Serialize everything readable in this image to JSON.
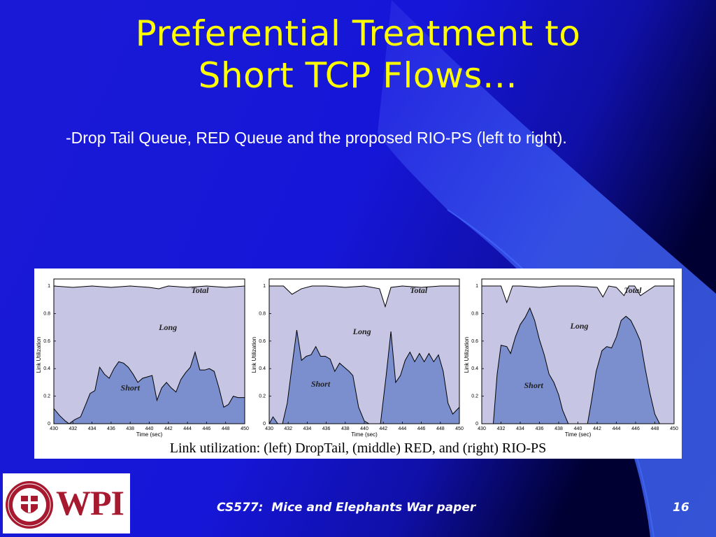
{
  "slide": {
    "title_lines": [
      "Preferential Treatment to",
      "Short TCP Flows…"
    ],
    "bullet": "-Drop Tail Queue, RED Queue and the proposed RIO-PS (left to right).",
    "figure_caption": "Link utilization:  (left) DropTail, (middle) RED, and (right) RIO-PS",
    "footer": "CS577:  Mice and Elephants War paper",
    "slide_number": "16",
    "logo_text": "WPI",
    "logo_seal_text": "WORCESTER POLYTECHNIC INSTITUTE 1865"
  },
  "colors": {
    "background": "#1414d8",
    "title": "#ffff00",
    "total_fill": "#c6c6e4",
    "short_fill": "#7b8fcf",
    "logo_red": "#a6192e"
  },
  "chart_data": [
    {
      "type": "area",
      "name": "DropTail",
      "xlabel": "Time (sec)",
      "ylabel": "Link Utilization",
      "xlim": [
        430,
        450
      ],
      "ylim": [
        0,
        1
      ],
      "xticks": [
        "430",
        "432",
        "434",
        "436",
        "438",
        "440",
        "442",
        "444",
        "446",
        "448",
        "450"
      ],
      "yticks": [
        "0",
        "0.2",
        "0.4",
        "0.6",
        "0.8",
        "1"
      ],
      "region_labels": [
        "Total",
        "Long",
        "Short"
      ],
      "series": [
        {
          "name": "Total",
          "x": [
            430,
            432,
            434,
            436,
            438,
            440,
            441,
            442,
            444,
            446,
            448,
            450
          ],
          "y": [
            1.0,
            0.99,
            1.0,
            0.99,
            1.0,
            0.99,
            0.98,
            1.0,
            0.99,
            1.0,
            0.99,
            1.0
          ]
        },
        {
          "name": "Short",
          "x": [
            430,
            430.6,
            431.2,
            431.6,
            432.2,
            432.8,
            433.4,
            433.8,
            434.3,
            434.8,
            435.3,
            435.8,
            436.3,
            436.8,
            437.3,
            437.8,
            438.3,
            438.8,
            439.3,
            439.8,
            440.3,
            440.8,
            441.3,
            441.8,
            442.3,
            442.8,
            443.3,
            443.8,
            444.3,
            444.8,
            445.3,
            445.8,
            446.3,
            446.8,
            447.3,
            447.8,
            448.3,
            448.8,
            449.3,
            450
          ],
          "y": [
            0.11,
            0.06,
            0.02,
            0.0,
            0.03,
            0.05,
            0.15,
            0.22,
            0.24,
            0.41,
            0.36,
            0.33,
            0.4,
            0.45,
            0.44,
            0.41,
            0.36,
            0.3,
            0.33,
            0.34,
            0.35,
            0.17,
            0.26,
            0.3,
            0.26,
            0.23,
            0.32,
            0.37,
            0.41,
            0.52,
            0.39,
            0.39,
            0.4,
            0.38,
            0.26,
            0.12,
            0.14,
            0.2,
            0.19,
            0.19
          ]
        }
      ]
    },
    {
      "type": "area",
      "name": "RED",
      "xlabel": "Time (sec)",
      "ylabel": "Link Utilization",
      "xlim": [
        430,
        450
      ],
      "ylim": [
        0,
        1
      ],
      "xticks": [
        "430",
        "432",
        "434",
        "436",
        "438",
        "440",
        "442",
        "444",
        "446",
        "448",
        "450"
      ],
      "yticks": [
        "0",
        "0.2",
        "0.4",
        "0.6",
        "0.8",
        "1"
      ],
      "region_labels": [
        "Total",
        "Long",
        "Short"
      ],
      "series": [
        {
          "name": "Total",
          "x": [
            430,
            431.5,
            432.4,
            433.4,
            434.5,
            436,
            438,
            440,
            441.6,
            442.2,
            442.8,
            444,
            446,
            448,
            450
          ],
          "y": [
            1.0,
            1.0,
            0.94,
            0.98,
            1.0,
            1.0,
            0.99,
            1.0,
            0.98,
            0.85,
            0.99,
            1.0,
            0.99,
            1.0,
            1.0
          ],
          "region_labels": [
            "Total"
          ]
        },
        {
          "name": "Short",
          "x": [
            430,
            430.4,
            430.9,
            431.4,
            431.9,
            432.4,
            432.9,
            433.4,
            433.9,
            434.4,
            434.9,
            435.4,
            435.9,
            436.4,
            436.9,
            437.4,
            437.9,
            438.4,
            438.8,
            439.4,
            440,
            440.5,
            441.0,
            441.3,
            441.7,
            442.3,
            442.8,
            443.3,
            443.8,
            444.3,
            444.8,
            445.3,
            445.8,
            446.3,
            446.8,
            447.3,
            447.8,
            448.3,
            448.8,
            449.3,
            450
          ],
          "y": [
            0.0,
            0.05,
            0.0,
            0.0,
            0.15,
            0.42,
            0.68,
            0.46,
            0.49,
            0.5,
            0.56,
            0.49,
            0.49,
            0.47,
            0.38,
            0.44,
            0.41,
            0.38,
            0.35,
            0.12,
            0.02,
            0.0,
            0.0,
            0.0,
            0.0,
            0.35,
            0.67,
            0.3,
            0.35,
            0.46,
            0.52,
            0.45,
            0.51,
            0.45,
            0.51,
            0.45,
            0.5,
            0.38,
            0.15,
            0.07,
            0.12
          ]
        }
      ]
    },
    {
      "type": "area",
      "name": "RIO-PS",
      "xlabel": "Time (sec)",
      "ylabel": "Link Utilization",
      "xlim": [
        430,
        450
      ],
      "ylim": [
        0,
        1
      ],
      "xticks": [
        "430",
        "432",
        "434",
        "436",
        "438",
        "440",
        "442",
        "444",
        "446",
        "448",
        "450"
      ],
      "yticks": [
        "0",
        "0.2",
        "0.4",
        "0.6",
        "0.8",
        "1"
      ],
      "region_labels": [
        "Total",
        "Long",
        "Short"
      ],
      "series": [
        {
          "name": "Total",
          "x": [
            430,
            432,
            432.6,
            433.2,
            434,
            436,
            438,
            440,
            442,
            442.6,
            443.2,
            444,
            444.8,
            445.3,
            445.9,
            446.5,
            448,
            450
          ],
          "y": [
            1.0,
            1.0,
            0.88,
            1.0,
            1.0,
            0.99,
            1.0,
            1.0,
            0.99,
            0.92,
            1.0,
            0.99,
            0.93,
            1.0,
            1.0,
            0.93,
            1.0,
            1.0
          ]
        },
        {
          "name": "Short",
          "x": [
            430,
            431.2,
            431.6,
            432.0,
            432.6,
            433.0,
            433.5,
            434.0,
            434.5,
            435.0,
            435.5,
            436.0,
            436.5,
            437.0,
            437.5,
            438.0,
            438.4,
            439.0,
            440,
            441.0,
            441.4,
            441.9,
            442.5,
            443.0,
            443.5,
            444.0,
            444.5,
            445.0,
            445.5,
            446.0,
            446.5,
            447.0,
            447.5,
            448.0,
            448.5,
            450
          ],
          "y": [
            0.0,
            0.0,
            0.36,
            0.57,
            0.56,
            0.51,
            0.63,
            0.72,
            0.77,
            0.84,
            0.75,
            0.61,
            0.5,
            0.36,
            0.3,
            0.21,
            0.1,
            0.0,
            0.0,
            0.0,
            0.16,
            0.38,
            0.53,
            0.56,
            0.55,
            0.63,
            0.75,
            0.78,
            0.75,
            0.68,
            0.6,
            0.4,
            0.22,
            0.07,
            0.0,
            0.0
          ]
        }
      ]
    }
  ]
}
